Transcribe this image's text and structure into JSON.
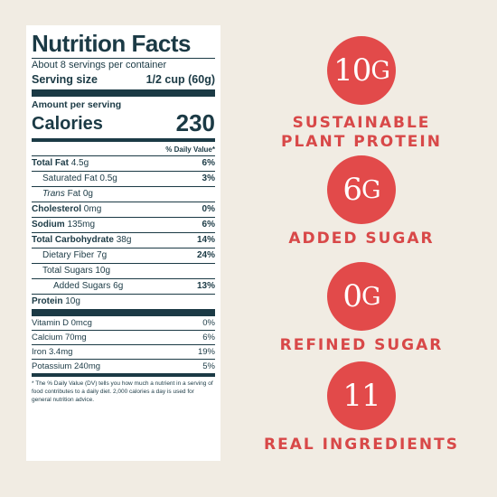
{
  "nutrition": {
    "title": "Nutrition Facts",
    "servings": "About 8 servings per container",
    "serving_size_label": "Serving size",
    "serving_size_value": "1/2 cup (60g)",
    "amount_per_serving": "Amount per serving",
    "calories_label": "Calories",
    "calories_value": "230",
    "dv_header": "% Daily Value*",
    "total_fat_label": "Total Fat",
    "total_fat_amount": "4.5g",
    "total_fat_pct": "6%",
    "sat_fat_label": "Saturated Fat 0.5g",
    "sat_fat_pct": "3%",
    "trans_fat_label": "Trans",
    "trans_fat_rest": "Fat 0g",
    "cholesterol_label": "Cholesterol",
    "cholesterol_amount": "0mg",
    "cholesterol_pct": "0%",
    "sodium_label": "Sodium",
    "sodium_amount": "135mg",
    "sodium_pct": "6%",
    "carb_label": "Total Carbohydrate",
    "carb_amount": "38g",
    "carb_pct": "14%",
    "fiber_label": "Dietary Fiber 7g",
    "fiber_pct": "24%",
    "sugars_label": "Total Sugars 10g",
    "added_sugars_label": "Added Sugars 6g",
    "added_sugars_pct": "13%",
    "protein_label": "Protein",
    "protein_amount": "10g",
    "vitamin_d_label": "Vitamin D 0mcg",
    "vitamin_d_pct": "0%",
    "calcium_label": "Calcium 70mg",
    "calcium_pct": "6%",
    "iron_label": "Iron 3.4mg",
    "iron_pct": "19%",
    "potassium_label": "Potassium 240mg",
    "potassium_pct": "5%",
    "footnote": "* The % Daily Value (DV) tells you how much a nutrient in a serving of food contributes to a daily diet. 2,000 calories a day is used for general nutrition advice."
  },
  "stats": [
    {
      "num": "10",
      "unit": "G",
      "caption_line1": "SUSTAINABLE",
      "caption_line2": "PLANT PROTEIN"
    },
    {
      "num": "6",
      "unit": "G",
      "caption_line1": "ADDED SUGAR",
      "caption_line2": ""
    },
    {
      "num": "0",
      "unit": "G",
      "caption_line1": "REFINED SUGAR",
      "caption_line2": ""
    },
    {
      "num": "11",
      "unit": "",
      "caption_line1": "REAL INGREDIENTS",
      "caption_line2": ""
    }
  ],
  "colors": {
    "background": "#f1ece3",
    "label_ink": "#1b3a45",
    "accent_red": "#e24a4a"
  }
}
